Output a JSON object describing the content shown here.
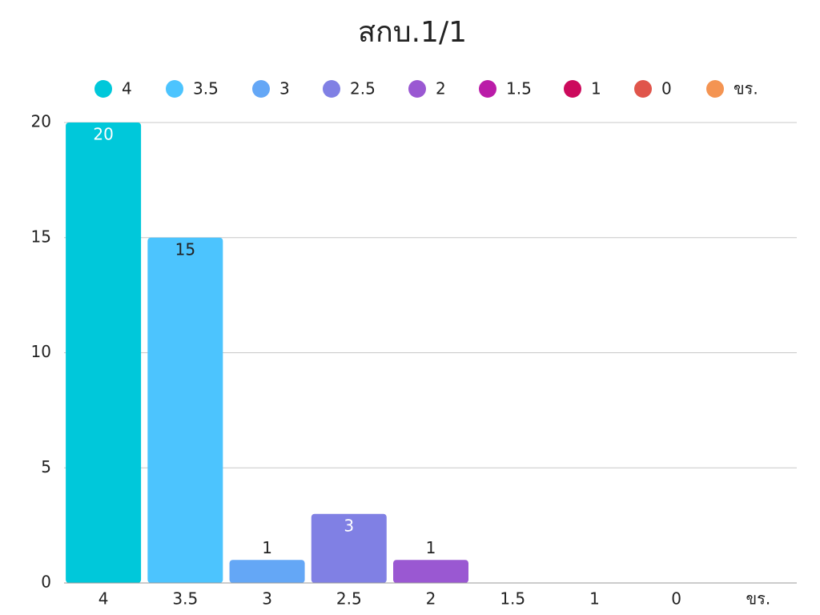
{
  "chart_data": {
    "type": "bar",
    "title": "สกบ.1/1",
    "categories": [
      "4",
      "3.5",
      "3",
      "2.5",
      "2",
      "1.5",
      "1",
      "0",
      "ขร."
    ],
    "values": [
      20,
      15,
      1,
      3,
      1,
      0,
      0,
      0,
      0
    ],
    "colors": [
      "#00c8da",
      "#4cc4fe",
      "#64a7f6",
      "#8080e4",
      "#9a58d2",
      "#ba1ca8",
      "#cc0a5c",
      "#e0554b",
      "#f49452"
    ],
    "ylim": [
      0,
      20
    ],
    "yticks": [
      0,
      5,
      10,
      15,
      20
    ],
    "grid": true
  }
}
